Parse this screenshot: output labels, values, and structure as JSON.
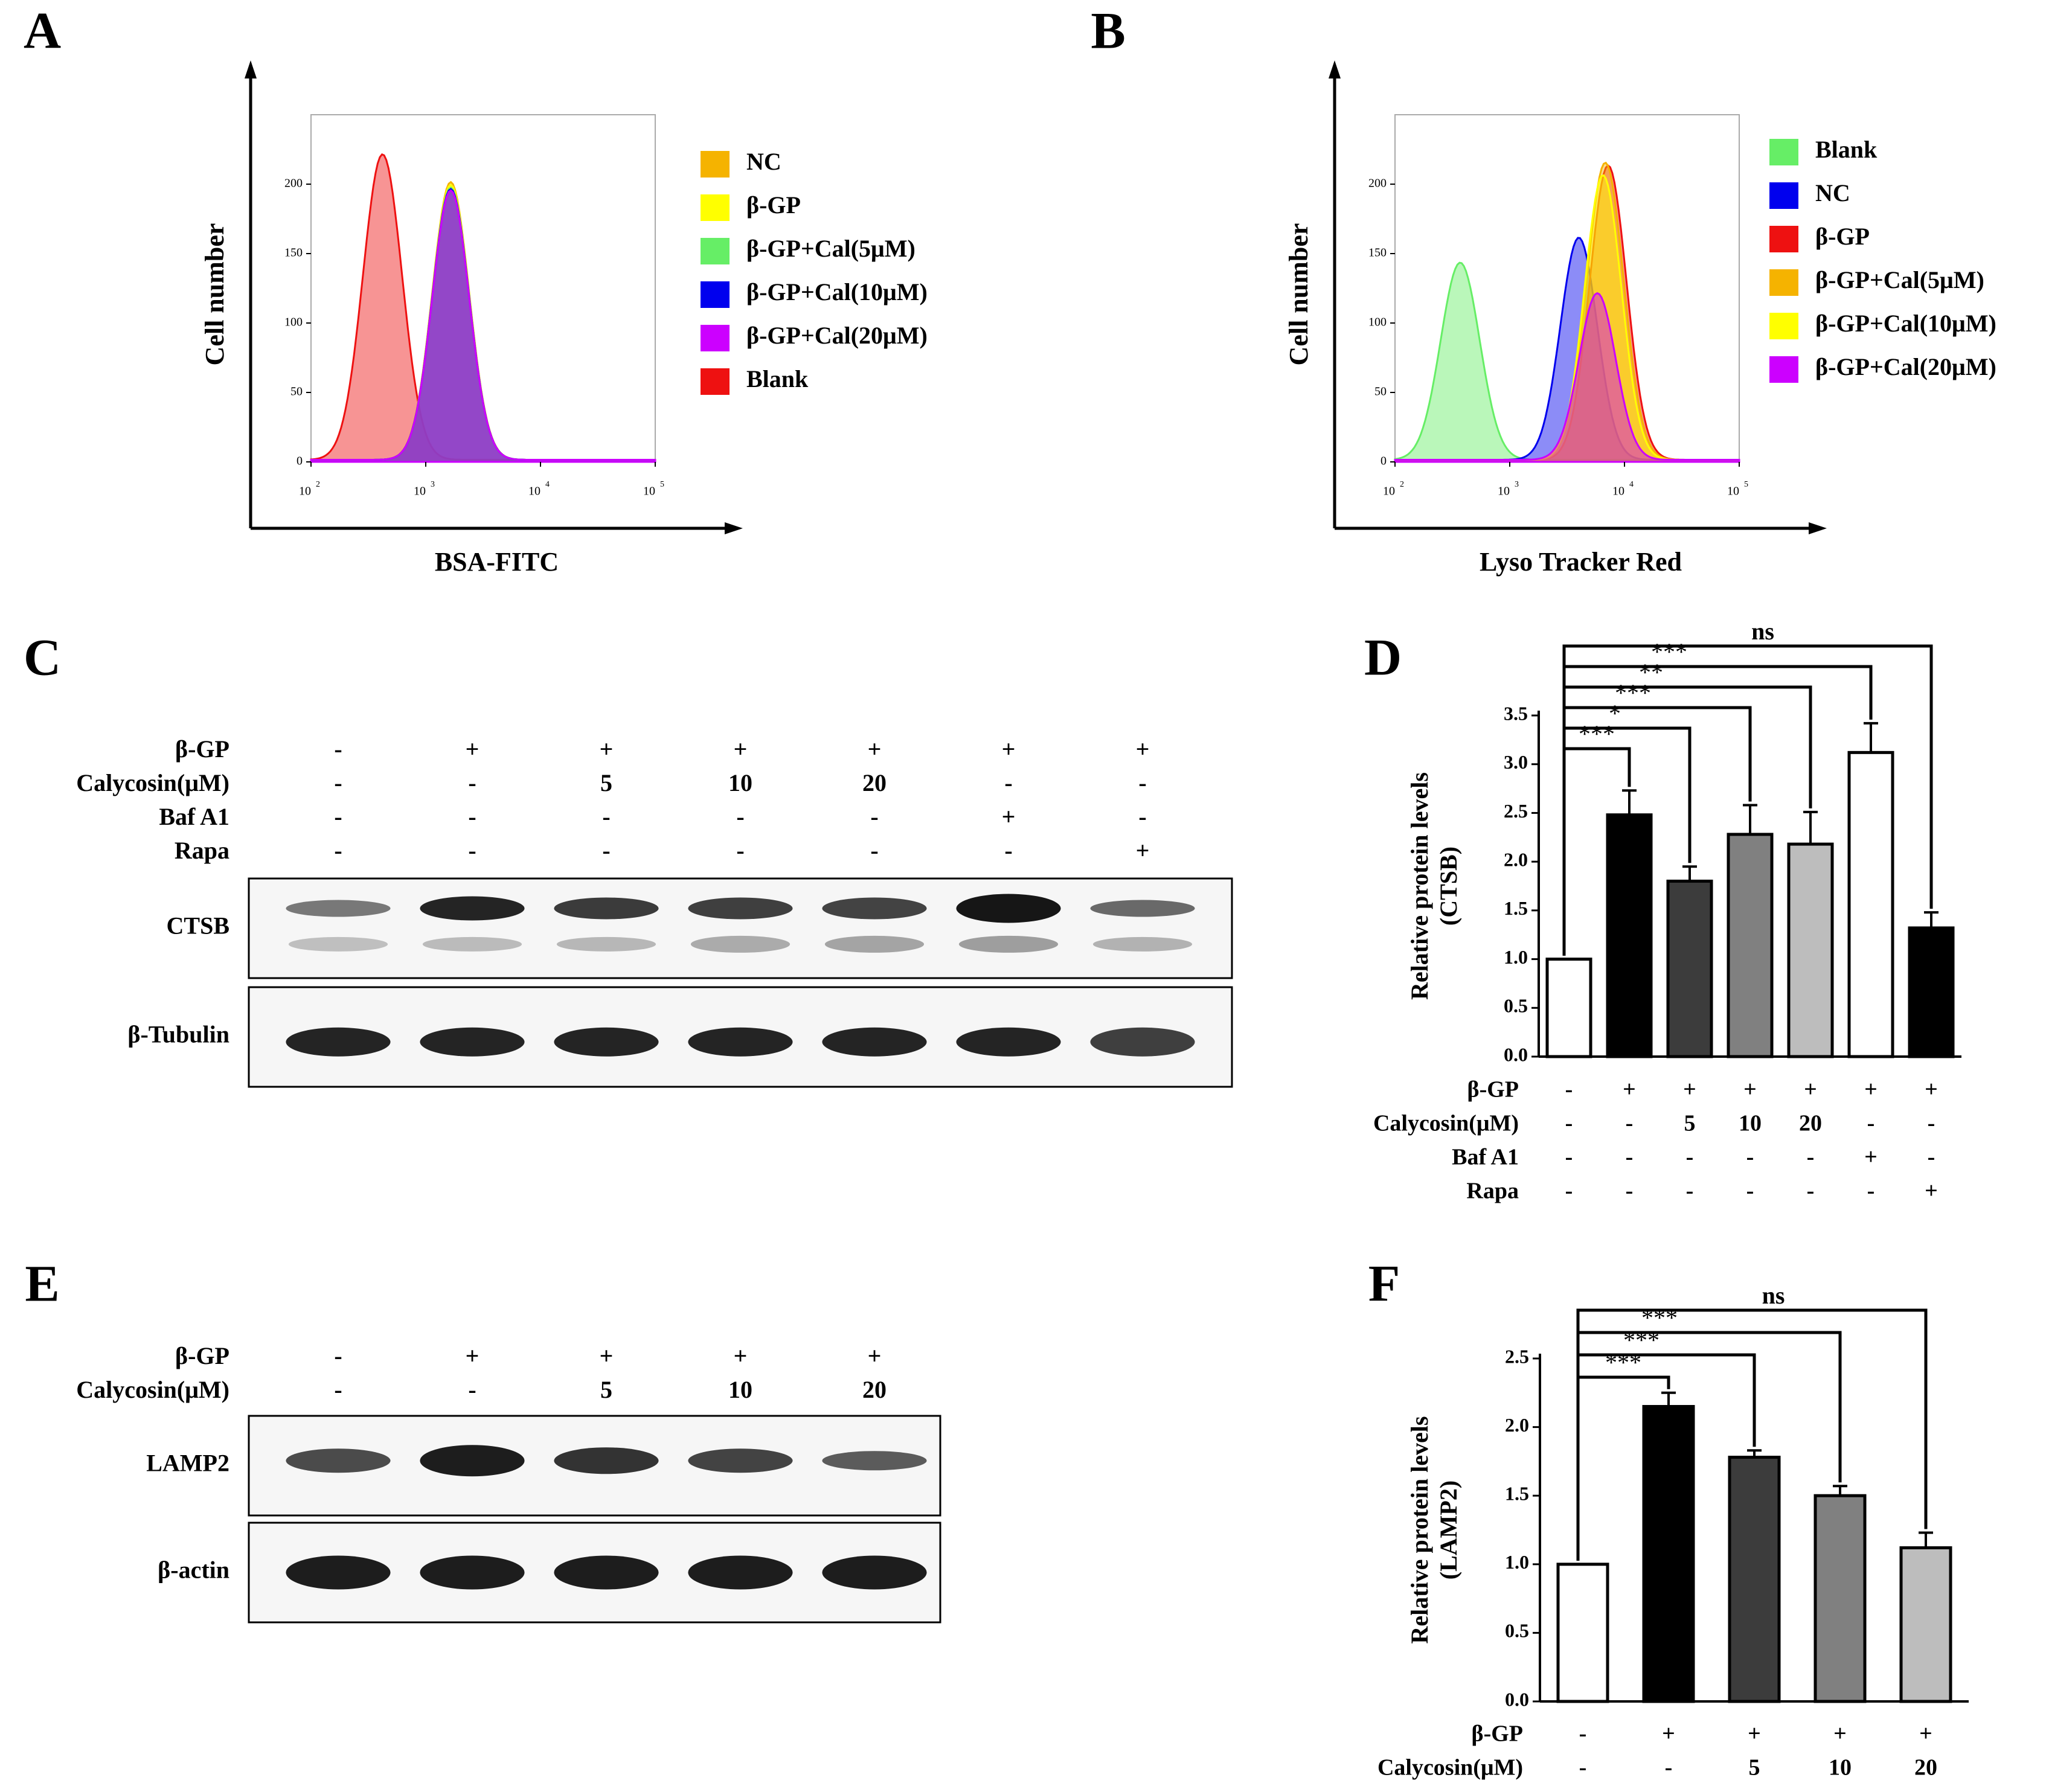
{
  "panels": {
    "A": {
      "letter": "A",
      "y_label": "Cell number",
      "x_label": "BSA-FITC",
      "x_ticks": [
        {
          "base": "10",
          "exp": "2"
        },
        {
          "base": "10",
          "exp": "3"
        },
        {
          "base": "10",
          "exp": "4"
        },
        {
          "base": "10",
          "exp": "5"
        }
      ],
      "y_ticks": [
        "0",
        "50",
        "100",
        "150",
        "200"
      ],
      "legend": [
        {
          "label": "NC",
          "color": "#F5B300"
        },
        {
          "label": "β-GP",
          "color": "#FFFF00"
        },
        {
          "label": "β-GP+Cal(5μM)",
          "color": "#66EE66"
        },
        {
          "label": "β-GP+Cal(10μM)",
          "color": "#0000EE"
        },
        {
          "label": "β-GP+Cal(20μM)",
          "color": "#CC00FF"
        },
        {
          "label": "Blank",
          "color": "#EE1111"
        }
      ]
    },
    "B": {
      "letter": "B",
      "y_label": "Cell number",
      "x_label": "Lyso Tracker Red",
      "x_ticks": [
        {
          "base": "10",
          "exp": "2"
        },
        {
          "base": "10",
          "exp": "3"
        },
        {
          "base": "10",
          "exp": "4"
        },
        {
          "base": "10",
          "exp": "5"
        }
      ],
      "y_ticks": [
        "0",
        "50",
        "100",
        "150",
        "200"
      ],
      "legend": [
        {
          "label": "Blank",
          "color": "#66EE66"
        },
        {
          "label": "NC",
          "color": "#0000EE"
        },
        {
          "label": "β-GP",
          "color": "#EE1111"
        },
        {
          "label": "β-GP+Cal(5μM)",
          "color": "#F5B300"
        },
        {
          "label": "β-GP+Cal(10μM)",
          "color": "#FFFF00"
        },
        {
          "label": "β-GP+Cal(20μM)",
          "color": "#CC00FF"
        }
      ]
    },
    "C": {
      "letter": "C",
      "conditions": [
        {
          "label": "β-GP",
          "values": [
            "-",
            "+",
            "+",
            "+",
            "+",
            "+",
            "+"
          ]
        },
        {
          "label": "Calycosin(μM)",
          "values": [
            "-",
            "-",
            "5",
            "10",
            "20",
            "-",
            "-"
          ]
        },
        {
          "label": "Baf A1",
          "values": [
            "-",
            "-",
            "-",
            "-",
            "-",
            "+",
            "-"
          ]
        },
        {
          "label": "Rapa",
          "values": [
            "-",
            "-",
            "-",
            "-",
            "-",
            "-",
            "+"
          ]
        }
      ],
      "blots": [
        {
          "label": "CTSB"
        },
        {
          "label": "β-Tubulin"
        }
      ]
    },
    "E": {
      "letter": "E",
      "conditions": [
        {
          "label": "β-GP",
          "values": [
            "-",
            "+",
            "+",
            "+",
            "+"
          ]
        },
        {
          "label": "Calycosin(μM)",
          "values": [
            "-",
            "-",
            "5",
            "10",
            "20"
          ]
        }
      ],
      "blots": [
        {
          "label": "LAMP2"
        },
        {
          "label": "β-actin"
        }
      ]
    }
  },
  "chart_data": [
    {
      "panel": "A",
      "type": "area",
      "subtype": "flow cytometry histogram",
      "xlabel": "BSA-FITC",
      "ylabel": "Cell number",
      "x_scale": "log",
      "xlim": [
        100,
        100000
      ],
      "ylim": [
        0,
        250
      ],
      "series": [
        {
          "name": "Blank",
          "peak_x": 420,
          "peak_y": 220
        },
        {
          "name": "NC",
          "peak_x": 1650,
          "peak_y": 200
        },
        {
          "name": "β-GP",
          "peak_x": 1650,
          "peak_y": 198
        },
        {
          "name": "β-GP+Cal(5μM)",
          "peak_x": 1650,
          "peak_y": 196
        },
        {
          "name": "β-GP+Cal(10μM)",
          "peak_x": 1650,
          "peak_y": 195
        },
        {
          "name": "β-GP+Cal(20μM)",
          "peak_x": 1650,
          "peak_y": 194
        }
      ]
    },
    {
      "panel": "B",
      "type": "area",
      "subtype": "flow cytometry histogram",
      "xlabel": "Lyso Tracker Red",
      "ylabel": "Cell number",
      "x_scale": "log",
      "xlim": [
        100,
        100000
      ],
      "ylim": [
        0,
        250
      ],
      "series": [
        {
          "name": "Blank",
          "peak_x": 370,
          "peak_y": 142
        },
        {
          "name": "NC",
          "peak_x": 4000,
          "peak_y": 160
        },
        {
          "name": "β-GP",
          "peak_x": 7200,
          "peak_y": 212
        },
        {
          "name": "β-GP+Cal(5μM)",
          "peak_x": 6800,
          "peak_y": 214
        },
        {
          "name": "β-GP+Cal(10μM)",
          "peak_x": 6500,
          "peak_y": 205
        },
        {
          "name": "β-GP+Cal(20μM)",
          "peak_x": 5800,
          "peak_y": 120
        }
      ]
    },
    {
      "panel": "D",
      "letter": "D",
      "type": "bar",
      "ylabel_lines": [
        "Relative protein levels",
        "(CTSB)"
      ],
      "ylim": [
        0,
        3.5
      ],
      "yticks": [
        "0.0",
        "0.5",
        "1.0",
        "1.5",
        "2.0",
        "2.5",
        "3.0",
        "3.5"
      ],
      "values": [
        1.0,
        2.48,
        1.8,
        2.28,
        2.18,
        3.12,
        1.32
      ],
      "errors": [
        0.0,
        0.25,
        0.15,
        0.3,
        0.33,
        0.3,
        0.16
      ],
      "bar_colors": [
        "#ffffff",
        "#000000",
        "#3c3c3c",
        "#808080",
        "#bdbdbd",
        "#ffffff",
        "#000000"
      ],
      "conditions": [
        {
          "label": "β-GP",
          "values": [
            "-",
            "+",
            "+",
            "+",
            "+",
            "+",
            "+"
          ]
        },
        {
          "label": "Calycosin(μM)",
          "values": [
            "-",
            "-",
            "5",
            "10",
            "20",
            "-",
            "-"
          ]
        },
        {
          "label": "Baf A1",
          "values": [
            "-",
            "-",
            "-",
            "-",
            "-",
            "+",
            "-"
          ]
        },
        {
          "label": "Rapa",
          "values": [
            "-",
            "-",
            "-",
            "-",
            "-",
            "-",
            "+"
          ]
        }
      ],
      "significance": [
        {
          "to": 1,
          "label": "***"
        },
        {
          "to": 2,
          "label": "*"
        },
        {
          "to": 3,
          "label": "***"
        },
        {
          "to": 4,
          "label": "**"
        },
        {
          "to": 5,
          "label": "***"
        },
        {
          "to": 6,
          "label": "ns"
        }
      ]
    },
    {
      "panel": "F",
      "letter": "F",
      "type": "bar",
      "ylabel_lines": [
        "Relative protein levels",
        "(LAMP2)"
      ],
      "ylim": [
        0,
        2.5
      ],
      "yticks": [
        "0.0",
        "0.5",
        "1.0",
        "1.5",
        "2.0",
        "2.5"
      ],
      "values": [
        1.0,
        2.15,
        1.78,
        1.5,
        1.12
      ],
      "errors": [
        0.0,
        0.1,
        0.05,
        0.07,
        0.11
      ],
      "bar_colors": [
        "#ffffff",
        "#000000",
        "#3c3c3c",
        "#808080",
        "#bdbdbd"
      ],
      "conditions": [
        {
          "label": "β-GP",
          "values": [
            "-",
            "+",
            "+",
            "+",
            "+"
          ]
        },
        {
          "label": "Calycosin(μM)",
          "values": [
            "-",
            "-",
            "5",
            "10",
            "20"
          ]
        }
      ],
      "significance": [
        {
          "to": 1,
          "label": "***"
        },
        {
          "to": 2,
          "label": "***"
        },
        {
          "to": 3,
          "label": "***"
        },
        {
          "to": 4,
          "label": "ns"
        }
      ]
    }
  ]
}
